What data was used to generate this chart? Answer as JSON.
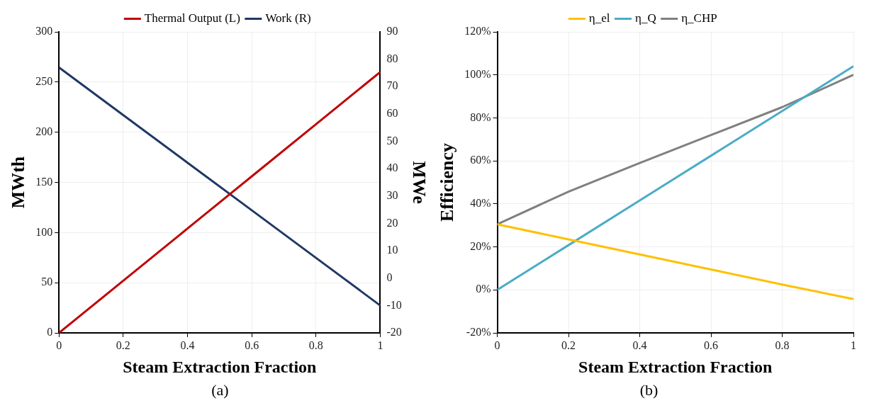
{
  "chart_data": [
    {
      "type": "line",
      "xlabel": "Steam Extraction Fraction",
      "ylabel": "MWth",
      "y2label": "MWe",
      "x": [
        0,
        0.2,
        0.4,
        0.6,
        0.8,
        1
      ],
      "series": [
        {
          "name": "Thermal Output (L)",
          "color": "#c00000",
          "values": [
            0,
            52,
            104,
            156,
            208,
            260
          ]
        },
        {
          "name": "Work (R)",
          "color": "#203864",
          "axis": "y2",
          "values": [
            77,
            59.6,
            42.2,
            24.8,
            7.4,
            -10
          ]
        }
      ],
      "xlim": [
        0,
        1
      ],
      "xticks": [
        0,
        0.2,
        0.4,
        0.6,
        0.8,
        1
      ],
      "ylim": [
        0,
        300
      ],
      "yticks": [
        0,
        50,
        100,
        150,
        200,
        250,
        300
      ],
      "y2lim": [
        -20,
        90
      ],
      "y2ticks": [
        -20,
        -10,
        0,
        10,
        20,
        30,
        40,
        50,
        60,
        70,
        80,
        90
      ],
      "grid": true,
      "legend": "top",
      "marker": "none",
      "line_style": "solid",
      "annotations": [
        "(a)"
      ]
    },
    {
      "type": "line",
      "xlabel": "Steam Extraction Fraction",
      "ylabel": "Efficiency",
      "x": [
        0,
        0.2,
        0.4,
        0.6,
        0.8,
        1
      ],
      "series": [
        {
          "name": "η_el",
          "color": "#ffc000",
          "values": [
            30.5,
            23.5,
            16.5,
            9.5,
            2.5,
            -4.3
          ]
        },
        {
          "name": "η_Q",
          "color": "#4bacc6",
          "values": [
            0,
            20.8,
            41.6,
            62.4,
            83.2,
            104
          ]
        },
        {
          "name": "η_CHP",
          "color": "#808080",
          "values": [
            30.5,
            45.7,
            59,
            72,
            85,
            100
          ]
        }
      ],
      "xlim": [
        0,
        1
      ],
      "xticks": [
        0,
        0.2,
        0.4,
        0.6,
        0.8,
        1
      ],
      "ylim": [
        -20,
        120
      ],
      "yticks": [
        {
          "value": -20,
          "label": "-20%"
        },
        {
          "value": 0,
          "label": "0%"
        },
        {
          "value": 20,
          "label": "20%"
        },
        {
          "value": 40,
          "label": "40%"
        },
        {
          "value": 60,
          "label": "60%"
        },
        {
          "value": 80,
          "label": "80%"
        },
        {
          "value": 100,
          "label": "100%"
        },
        {
          "value": 120,
          "label": "120%"
        }
      ],
      "grid": true,
      "legend": "top",
      "marker": "none",
      "line_style": "solid",
      "annotations": [
        "(b)"
      ]
    }
  ]
}
